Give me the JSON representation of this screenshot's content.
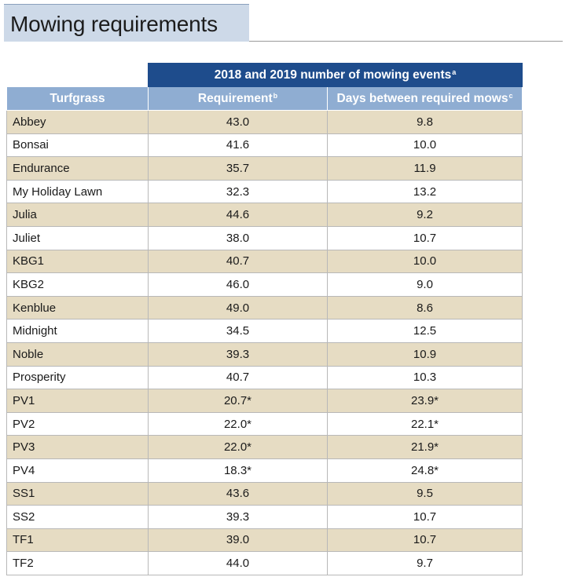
{
  "title": "Mowing requirements",
  "table": {
    "group_header": "2018 and 2019 number of mowing events",
    "group_header_sup": "a",
    "columns": [
      {
        "label": "Turfgrass",
        "sup": ""
      },
      {
        "label": "Requirement",
        "sup": "b"
      },
      {
        "label": "Days between required mows",
        "sup": "c"
      }
    ],
    "rows": [
      {
        "turfgrass": "Abbey",
        "requirement": "43.0",
        "days": "9.8"
      },
      {
        "turfgrass": "Bonsai",
        "requirement": "41.6",
        "days": "10.0"
      },
      {
        "turfgrass": "Endurance",
        "requirement": "35.7",
        "days": "11.9"
      },
      {
        "turfgrass": "My Holiday Lawn",
        "requirement": "32.3",
        "days": "13.2"
      },
      {
        "turfgrass": "Julia",
        "requirement": "44.6",
        "days": "9.2"
      },
      {
        "turfgrass": "Juliet",
        "requirement": "38.0",
        "days": "10.7"
      },
      {
        "turfgrass": "KBG1",
        "requirement": "40.7",
        "days": "10.0"
      },
      {
        "turfgrass": "KBG2",
        "requirement": "46.0",
        "days": "9.0"
      },
      {
        "turfgrass": "Kenblue",
        "requirement": "49.0",
        "days": "8.6"
      },
      {
        "turfgrass": "Midnight",
        "requirement": "34.5",
        "days": "12.5"
      },
      {
        "turfgrass": "Noble",
        "requirement": "39.3",
        "days": "10.9"
      },
      {
        "turfgrass": "Prosperity",
        "requirement": "40.7",
        "days": "10.3"
      },
      {
        "turfgrass": "PV1",
        "requirement": "20.7*",
        "days": "23.9*"
      },
      {
        "turfgrass": "PV2",
        "requirement": "22.0*",
        "days": "22.1*"
      },
      {
        "turfgrass": "PV3",
        "requirement": "22.0*",
        "days": "21.9*"
      },
      {
        "turfgrass": "PV4",
        "requirement": "18.3*",
        "days": "24.8*"
      },
      {
        "turfgrass": "SS1",
        "requirement": "43.6",
        "days": "9.5"
      },
      {
        "turfgrass": "SS2",
        "requirement": "39.3",
        "days": "10.7"
      },
      {
        "turfgrass": "TF1",
        "requirement": "39.0",
        "days": "10.7"
      },
      {
        "turfgrass": "TF2",
        "requirement": "44.0",
        "days": "9.7"
      }
    ]
  },
  "colors": {
    "title_band": "#cdd9e8",
    "group_header": "#1e4c8c",
    "column_header": "#8fadd2",
    "row_alt": "#e6dcc3"
  }
}
